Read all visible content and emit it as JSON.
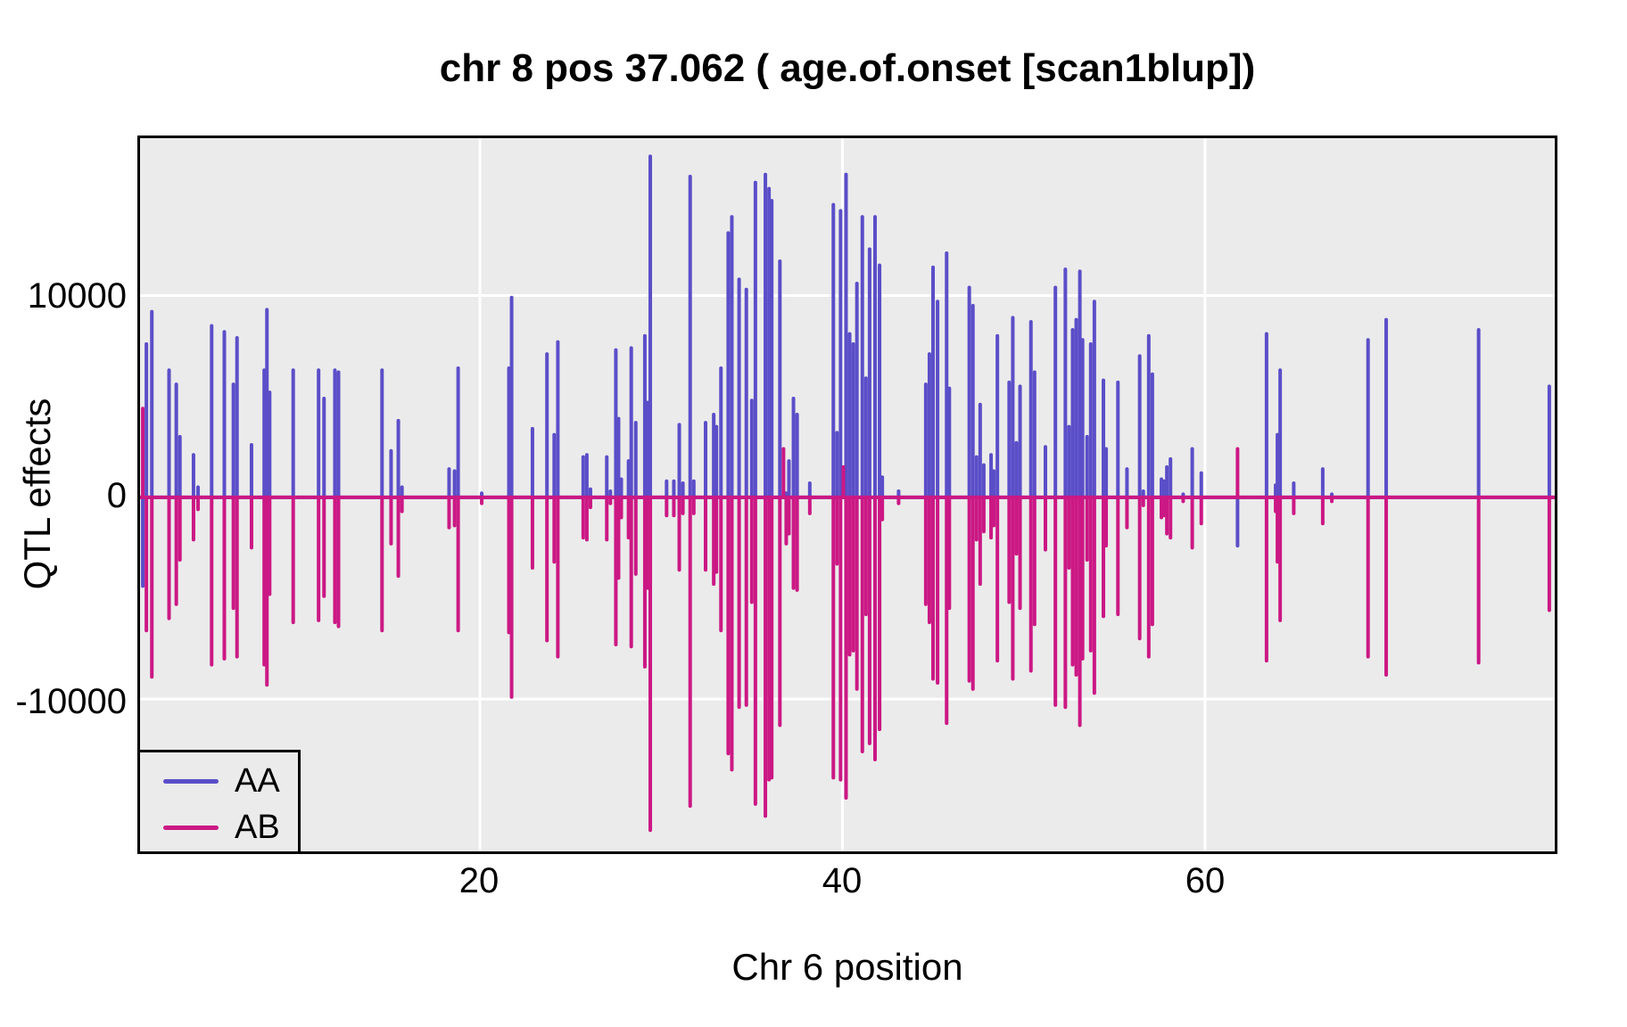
{
  "title": "chr 8 pos 37.062 ( age.of.onset  [scan1blup])",
  "axes": {
    "x": {
      "label": "Chr 6 position",
      "ticks": [
        "20",
        "40",
        "60"
      ]
    },
    "y": {
      "label": "QTL effects",
      "ticks": [
        "10000",
        "0",
        "-10000"
      ]
    }
  },
  "legend": {
    "entries": [
      {
        "label": "AA",
        "color": "#5B4EC8"
      },
      {
        "label": "AB",
        "color": "#CB1884"
      }
    ]
  },
  "colors": {
    "aa_series": "#5B4EC8",
    "ab_series": "#CB1884",
    "panel_background": "#EBEBEB",
    "gridline": "#FFFFFF",
    "panel_border": "#000000",
    "page_background": "#FFFFFF",
    "text": "#000000"
  },
  "chart_data": {
    "type": "line",
    "subtype": "vertical-spike-effect-scan",
    "title": "chr 8 pos 37.062 ( age.of.onset  [scan1blup])",
    "xlabel": "Chr 6 position",
    "ylabel": "QTL effects",
    "x_ticks": [
      20,
      40,
      60
    ],
    "y_ticks": [
      10000,
      0,
      -10000
    ],
    "x_range": [
      1.25,
      79.3
    ],
    "y_range": [
      -17550,
      17800
    ],
    "baseline": 0,
    "grid": "white-major-on-gray",
    "legend_position": "bottom-left-inside",
    "series_names": [
      "AA",
      "AB"
    ],
    "series_colors": {
      "AA": "#5B4EC8",
      "AB": "#CB1884"
    },
    "columns": [
      "pos",
      "AA",
      "AB"
    ],
    "points": [
      [
        1.4,
        -4400,
        4400
      ],
      [
        1.6,
        7600,
        -6600
      ],
      [
        1.9,
        9200,
        -8900
      ],
      [
        2.85,
        6300,
        -6000
      ],
      [
        3.25,
        5600,
        -5300
      ],
      [
        3.45,
        3000,
        -3100
      ],
      [
        4.2,
        2100,
        -2100
      ],
      [
        4.45,
        500,
        -600
      ],
      [
        5.2,
        8500,
        -8300
      ],
      [
        5.9,
        8200,
        -8000
      ],
      [
        6.4,
        5600,
        -5500
      ],
      [
        6.6,
        7900,
        -7900
      ],
      [
        7.4,
        2600,
        -2500
      ],
      [
        8.1,
        6300,
        -8300
      ],
      [
        8.25,
        9300,
        -9300
      ],
      [
        8.4,
        5200,
        -4800
      ],
      [
        9.7,
        6300,
        -6200
      ],
      [
        11.1,
        6300,
        -6100
      ],
      [
        11.4,
        4900,
        -4900
      ],
      [
        12.0,
        6300,
        -6200
      ],
      [
        12.2,
        6200,
        -6400
      ],
      [
        14.6,
        6300,
        -6600
      ],
      [
        15.1,
        2300,
        -2300
      ],
      [
        15.5,
        3800,
        -3900
      ],
      [
        15.7,
        500,
        -700
      ],
      [
        18.3,
        1400,
        -1500
      ],
      [
        18.6,
        1300,
        -1400
      ],
      [
        18.8,
        6400,
        -6600
      ],
      [
        20.1,
        200,
        -300
      ],
      [
        21.6,
        6400,
        -6700
      ],
      [
        21.75,
        9900,
        -9900
      ],
      [
        22.9,
        3400,
        -3500
      ],
      [
        23.7,
        7100,
        -7100
      ],
      [
        24.1,
        3100,
        -3200
      ],
      [
        24.3,
        7700,
        -7900
      ],
      [
        25.7,
        2000,
        -2000
      ],
      [
        25.9,
        2100,
        -2100
      ],
      [
        26.1,
        400,
        -500
      ],
      [
        27.0,
        2000,
        -2100
      ],
      [
        27.2,
        300,
        -300
      ],
      [
        27.5,
        7300,
        -7300
      ],
      [
        27.65,
        3900,
        -4000
      ],
      [
        27.8,
        900,
        -1000
      ],
      [
        28.2,
        1800,
        -2000
      ],
      [
        28.35,
        7400,
        -7400
      ],
      [
        28.6,
        3700,
        -3800
      ],
      [
        29.1,
        8000,
        -8400
      ],
      [
        29.25,
        4700,
        -4500
      ],
      [
        29.4,
        16900,
        -16500
      ],
      [
        30.3,
        800,
        -900
      ],
      [
        30.7,
        800,
        -900
      ],
      [
        31.0,
        3600,
        -3600
      ],
      [
        31.2,
        700,
        -800
      ],
      [
        31.6,
        15900,
        -15300
      ],
      [
        31.8,
        800,
        -800
      ],
      [
        32.45,
        3700,
        -3600
      ],
      [
        32.9,
        4100,
        -4300
      ],
      [
        33.05,
        3500,
        -3700
      ],
      [
        33.3,
        6400,
        -6600
      ],
      [
        33.7,
        13100,
        -12700
      ],
      [
        33.9,
        13900,
        -13500
      ],
      [
        34.3,
        10800,
        -10400
      ],
      [
        34.7,
        10300,
        -10300
      ],
      [
        35.0,
        4800,
        -5200
      ],
      [
        35.2,
        15600,
        -15200
      ],
      [
        35.75,
        16000,
        -15800
      ],
      [
        35.95,
        15300,
        -14000
      ],
      [
        36.1,
        14700,
        -13900
      ],
      [
        36.55,
        11700,
        -11300
      ],
      [
        36.75,
        300,
        2400
      ],
      [
        36.9,
        200,
        -2300
      ],
      [
        37.05,
        1800,
        -1800
      ],
      [
        37.3,
        4900,
        -4500
      ],
      [
        37.5,
        4100,
        -4600
      ],
      [
        38.2,
        700,
        -800
      ],
      [
        39.5,
        14500,
        -13900
      ],
      [
        39.7,
        3200,
        -3300
      ],
      [
        39.9,
        14200,
        -14000
      ],
      [
        40.05,
        800,
        1500
      ],
      [
        40.2,
        16000,
        -14900
      ],
      [
        40.4,
        8100,
        -7800
      ],
      [
        40.6,
        7600,
        -7600
      ],
      [
        40.8,
        10600,
        -9500
      ],
      [
        41.1,
        13900,
        -12600
      ],
      [
        41.3,
        5900,
        -5800
      ],
      [
        41.5,
        12300,
        -12200
      ],
      [
        41.8,
        13900,
        -13000
      ],
      [
        42.05,
        11500,
        -11500
      ],
      [
        42.2,
        1000,
        -1100
      ],
      [
        43.1,
        300,
        -300
      ],
      [
        44.6,
        5600,
        -5300
      ],
      [
        44.8,
        7100,
        -6200
      ],
      [
        45.0,
        11400,
        -9000
      ],
      [
        45.25,
        9700,
        -9200
      ],
      [
        45.75,
        12100,
        -11200
      ],
      [
        45.9,
        5400,
        -5500
      ],
      [
        47.0,
        10400,
        -9100
      ],
      [
        47.2,
        9500,
        -9500
      ],
      [
        47.4,
        2000,
        -2100
      ],
      [
        47.6,
        4600,
        -4300
      ],
      [
        47.8,
        1600,
        -1700
      ],
      [
        48.2,
        2100,
        -2000
      ],
      [
        48.35,
        1300,
        -1400
      ],
      [
        48.55,
        8000,
        -8100
      ],
      [
        49.2,
        5700,
        -5200
      ],
      [
        49.4,
        8900,
        -9000
      ],
      [
        49.6,
        2700,
        -2800
      ],
      [
        49.8,
        5500,
        -5500
      ],
      [
        50.4,
        8700,
        -8600
      ],
      [
        50.6,
        6200,
        -6300
      ],
      [
        51.2,
        2500,
        -2600
      ],
      [
        51.75,
        10400,
        -10300
      ],
      [
        52.3,
        11300,
        -10400
      ],
      [
        52.5,
        3500,
        -3500
      ],
      [
        52.7,
        8300,
        -8300
      ],
      [
        52.9,
        8800,
        -8800
      ],
      [
        53.1,
        11200,
        -11300
      ],
      [
        53.25,
        7800,
        -8000
      ],
      [
        53.5,
        3000,
        -3100
      ],
      [
        53.7,
        7600,
        -7600
      ],
      [
        53.9,
        9700,
        -9700
      ],
      [
        54.4,
        5800,
        -5900
      ],
      [
        54.55,
        2400,
        -2400
      ],
      [
        55.2,
        5700,
        -5800
      ],
      [
        55.7,
        1400,
        -1500
      ],
      [
        56.4,
        7000,
        -7000
      ],
      [
        56.6,
        300,
        -400
      ],
      [
        56.9,
        8000,
        -7900
      ],
      [
        57.1,
        6100,
        -6300
      ],
      [
        57.6,
        900,
        -1000
      ],
      [
        57.75,
        800,
        -900
      ],
      [
        57.9,
        1500,
        -1800
      ],
      [
        58.1,
        1900,
        -2000
      ],
      [
        58.8,
        150,
        -200
      ],
      [
        59.3,
        2400,
        -2500
      ],
      [
        59.8,
        1200,
        -1300
      ],
      [
        61.8,
        -2400,
        2400
      ],
      [
        63.4,
        8100,
        -8100
      ],
      [
        63.9,
        600,
        -700
      ],
      [
        64.0,
        3100,
        -3200
      ],
      [
        64.15,
        6300,
        -6100
      ],
      [
        64.9,
        700,
        -800
      ],
      [
        66.5,
        1400,
        -1300
      ],
      [
        67.0,
        150,
        -200
      ],
      [
        69.0,
        7800,
        -7900
      ],
      [
        70.0,
        8800,
        -8800
      ],
      [
        75.1,
        8300,
        -8200
      ],
      [
        79.0,
        5500,
        -5600
      ]
    ]
  }
}
